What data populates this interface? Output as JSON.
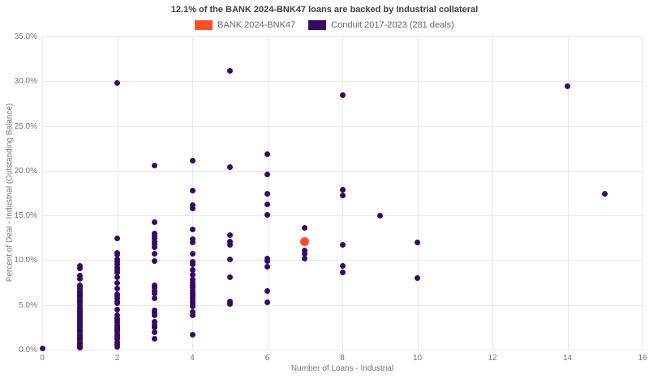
{
  "title": "12.1% of the BANK 2024-BNK47 loans are backed by Industrial collateral",
  "legend": [
    {
      "label": "BANK 2024-BNK47",
      "color": "#ff4e2b"
    },
    {
      "label": "Conduit 2017-2023 (281 deals)",
      "color": "#360a60"
    }
  ],
  "chart_data": {
    "type": "scatter",
    "title": "12.1% of the BANK 2024-BNK47 loans are backed by Industrial collateral",
    "xlabel": "Number of Loans - Industrial",
    "ylabel": "Percent of Deal - Industrial (Outstanding Balance)",
    "xlim": [
      0,
      16
    ],
    "ylim": [
      0,
      35
    ],
    "x_ticks": [
      0,
      2,
      4,
      6,
      8,
      10,
      12,
      14,
      16
    ],
    "x_tick_labels": [
      "0",
      "2",
      "4",
      "6",
      "8",
      "10",
      "12",
      "14",
      "16"
    ],
    "y_ticks": [
      0,
      5,
      10,
      15,
      20,
      25,
      30,
      35
    ],
    "y_tick_labels": [
      "0.0%",
      "5.0%",
      "10.0%",
      "15.0%",
      "20.0%",
      "25.0%",
      "30.0%",
      "35.0%"
    ],
    "grid": true,
    "legend_position": "top-center",
    "series": [
      {
        "name": "BANK 2024-BNK47",
        "color": "#ff4e2b",
        "marker_px": 11,
        "columns": [
          {
            "x": 7,
            "values": [
              12.1
            ]
          }
        ]
      },
      {
        "name": "Conduit 2017-2023 (281 deals)",
        "color": "#360a60",
        "marker_px": 7,
        "columns": [
          {
            "x": 0,
            "values": [
              0.1
            ]
          },
          {
            "x": 1,
            "values": [
              9.4,
              9.1,
              8.3,
              7.9,
              7.2,
              7.0,
              6.8,
              6.6,
              6.4,
              6.2,
              6.0,
              5.8,
              5.6,
              5.4,
              5.2,
              4.9,
              4.7,
              4.5,
              4.3,
              4.1,
              3.9,
              3.7,
              3.5,
              3.3,
              3.1,
              2.9,
              2.7,
              2.5,
              2.3,
              2.1,
              1.9,
              1.7,
              1.5,
              1.3,
              1.1,
              0.9,
              0.7,
              0.5,
              0.3,
              0.2
            ]
          },
          {
            "x": 2,
            "values": [
              29.8,
              12.4,
              10.8,
              10.6,
              10.1,
              9.8,
              9.5,
              9.2,
              8.9,
              8.6,
              8.1,
              7.5,
              6.8,
              6.2,
              6.0,
              5.7,
              5.4,
              5.2,
              4.5,
              3.8,
              3.5,
              3.3,
              3.0,
              2.8,
              2.6,
              2.4,
              2.2,
              2.0,
              1.8,
              1.6,
              1.4,
              1.2,
              0.9,
              0.6,
              0.3
            ]
          },
          {
            "x": 3,
            "values": [
              20.6,
              14.2,
              13.0,
              12.7,
              12.4,
              12.1,
              11.8,
              11.4,
              10.7,
              9.9,
              7.2,
              6.9,
              6.6,
              6.3,
              5.7,
              4.4,
              4.1,
              3.8,
              3.1,
              2.8,
              2.5,
              1.9,
              1.2
            ]
          },
          {
            "x": 4,
            "values": [
              21.1,
              17.8,
              16.1,
              15.8,
              13.4,
              12.3,
              12.0,
              10.7,
              9.8,
              9.5,
              8.9,
              8.4,
              7.8,
              7.5,
              7.2,
              6.9,
              6.6,
              6.3,
              6.0,
              5.7,
              5.4,
              5.1,
              4.8,
              4.2,
              3.8,
              1.7
            ]
          },
          {
            "x": 5,
            "values": [
              31.2,
              20.4,
              12.8,
              12.1,
              11.7,
              10.1,
              8.1,
              5.4,
              5.1
            ]
          },
          {
            "x": 6,
            "values": [
              21.8,
              19.6,
              17.4,
              16.2,
              15.1,
              10.2,
              9.9,
              9.3,
              6.6,
              5.3
            ]
          },
          {
            "x": 7,
            "values": [
              13.6,
              11.1,
              10.7,
              10.2
            ]
          },
          {
            "x": 8,
            "values": [
              28.4,
              17.9,
              17.2,
              11.7,
              9.4,
              8.6
            ]
          },
          {
            "x": 9,
            "values": [
              15.0
            ]
          },
          {
            "x": 10,
            "values": [
              12.0,
              8.0
            ]
          },
          {
            "x": 14,
            "values": [
              29.4
            ]
          },
          {
            "x": 15,
            "values": [
              17.4
            ]
          }
        ]
      }
    ]
  }
}
